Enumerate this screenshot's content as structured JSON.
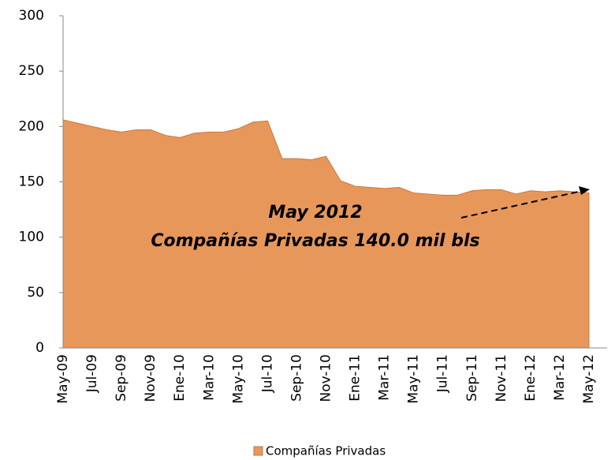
{
  "chart_data": {
    "type": "area",
    "categories": [
      "May-09",
      null,
      "Jul-09",
      null,
      "Sep-09",
      null,
      "Nov-09",
      null,
      "Ene-10",
      null,
      "Mar-10",
      null,
      "May-10",
      null,
      "Jul-10",
      null,
      "Sep-10",
      null,
      "Nov-10",
      null,
      "Ene-11",
      null,
      "Mar-11",
      null,
      "May-11",
      null,
      "Jul-11",
      null,
      "Sep-11",
      null,
      "Nov-11",
      null,
      "Ene-12",
      null,
      "Mar-12",
      null,
      "May-12"
    ],
    "series": [
      {
        "name": "Compañías Privadas",
        "color": "#e8975b",
        "values": [
          206,
          203,
          200,
          197,
          195,
          197,
          197,
          192,
          190,
          194,
          195,
          195,
          198,
          204,
          205,
          171,
          171,
          170,
          173,
          151,
          146,
          145,
          144,
          145,
          140,
          139,
          138,
          138,
          142,
          143,
          143,
          139,
          142,
          141,
          142,
          141,
          140
        ]
      }
    ],
    "ylim": [
      0,
      300
    ],
    "yticks": [
      0,
      50,
      100,
      150,
      200,
      250,
      300
    ],
    "annotations": [
      "May 2012",
      "Compañías Privadas 140.0 mil bls"
    ],
    "legend": "bottom"
  }
}
